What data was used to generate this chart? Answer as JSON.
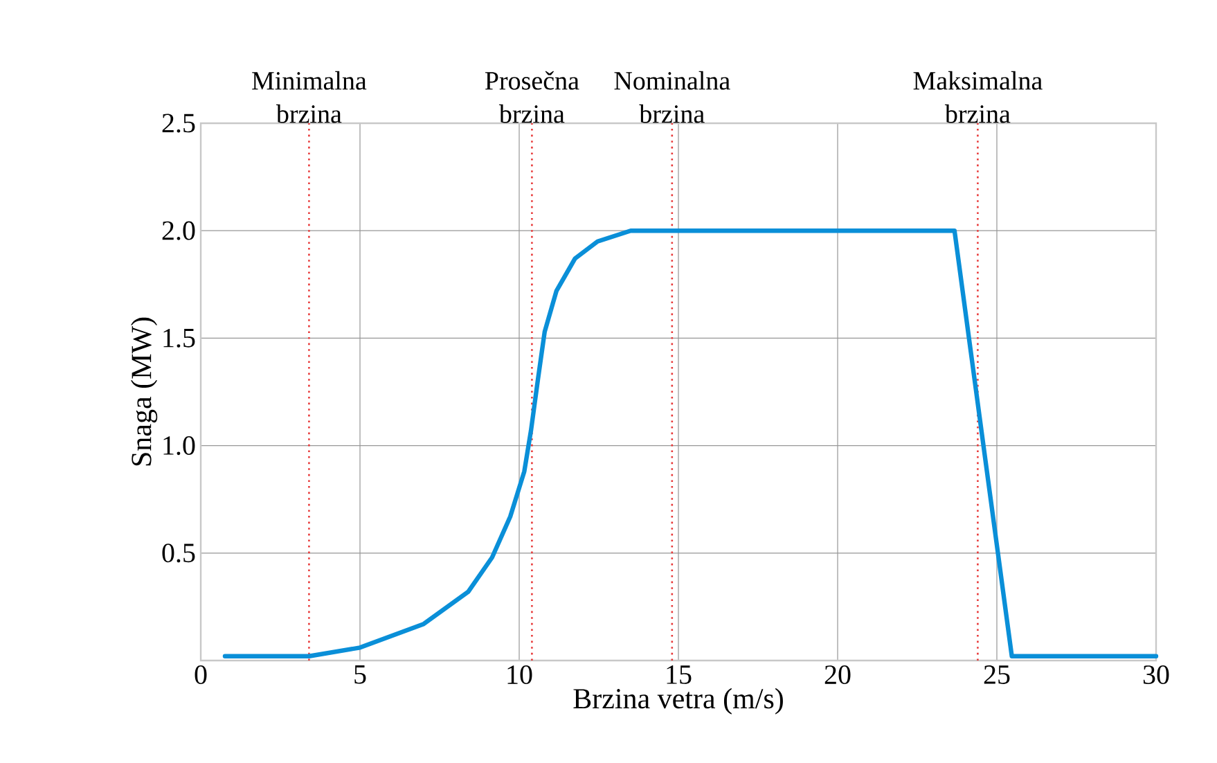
{
  "chart_data": {
    "type": "line",
    "xlabel": "Brzina vetra (m/s)",
    "ylabel": "Snaga (MW)",
    "xlim": [
      0,
      30
    ],
    "ylim": [
      0,
      2.5
    ],
    "xticks": [
      0,
      5,
      10,
      15,
      20,
      25,
      30
    ],
    "yticks": [
      {
        "value": 0,
        "label": null
      },
      0.5,
      {
        "value": 1,
        "label": "1.0"
      },
      1.5,
      {
        "value": 2,
        "label": "2.0"
      },
      2.5
    ],
    "grid": true,
    "marker": "none",
    "line_style": "solid",
    "series": [
      {
        "color": "#0a8fd8",
        "x": [
          0.76,
          3.4,
          5.0,
          7.0,
          8.4,
          9.15,
          9.72,
          10.16,
          10.37,
          10.59,
          10.8,
          11.17,
          11.75,
          12.46,
          13.5,
          23.67,
          25.47,
          30.0
        ],
        "values": [
          0.02,
          0.02,
          0.06,
          0.17,
          0.32,
          0.48,
          0.67,
          0.88,
          1.07,
          1.31,
          1.53,
          1.72,
          1.87,
          1.95,
          2.0,
          2.0,
          0.02,
          0.02
        ]
      }
    ],
    "ref_lines": [
      {
        "axis": "x",
        "value": 3.4,
        "label": "Minimalna brzina",
        "color": "#e83a3a",
        "line_style": "dotted"
      },
      {
        "axis": "x",
        "value": 10.4,
        "label": "Prosečna brzina",
        "color": "#e83a3a",
        "line_style": "dotted"
      },
      {
        "axis": "x",
        "value": 14.8,
        "label": "Nominalna brzina",
        "color": "#e83a3a",
        "line_style": "dotted"
      },
      {
        "axis": "x",
        "value": 24.4,
        "label": "Maksimalna brzina",
        "color": "#e83a3a",
        "line_style": "dotted"
      }
    ]
  }
}
